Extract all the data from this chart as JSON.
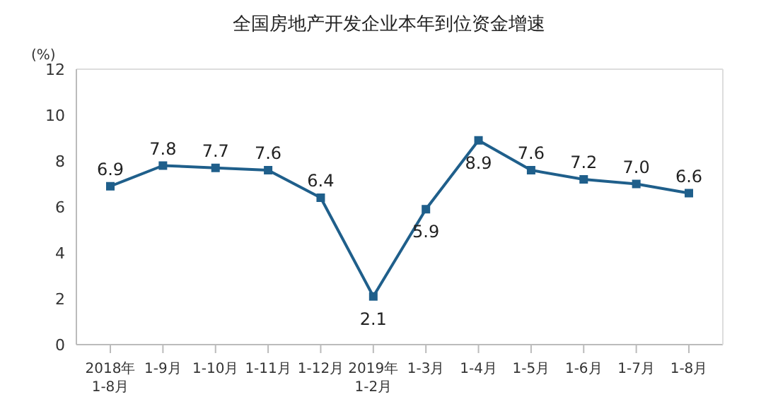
{
  "chart_data": {
    "type": "line",
    "title": "全国房地产开发企业本年到位资金增速",
    "ylabel": "(%)",
    "categories": [
      "2018年\n1-8月",
      "1-9月",
      "1-10月",
      "1-11月",
      "1-12月",
      "2019年\n1-2月",
      "1-3月",
      "1-4月",
      "1-5月",
      "1-6月",
      "1-7月",
      "1-8月"
    ],
    "series": [
      {
        "color": "#1f5f8b",
        "values": [
          6.9,
          7.8,
          7.7,
          7.6,
          6.4,
          2.1,
          5.9,
          8.9,
          7.6,
          7.2,
          7.0,
          6.6
        ],
        "value_labels": [
          "6.9",
          "7.8",
          "7.7",
          "7.6",
          "6.4",
          "2.1",
          "5.9",
          "8.9",
          "7.6",
          "7.2",
          "7.0",
          "6.6"
        ]
      }
    ],
    "ylim": [
      0,
      12
    ],
    "yticks": [
      0,
      2,
      4,
      6,
      8,
      10,
      12
    ],
    "grid": false,
    "legend": false,
    "marker": "square",
    "line_style": "solid"
  }
}
